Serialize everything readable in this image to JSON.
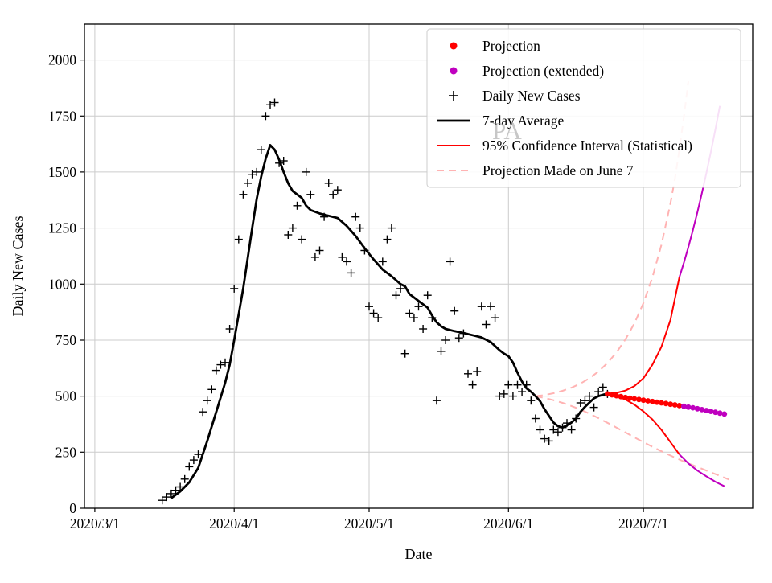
{
  "watermark": {
    "text": "PA",
    "color": "#999999"
  },
  "chart_data": {
    "type": "line",
    "title": "",
    "xlabel": "Date",
    "ylabel": "Daily New Cases",
    "grid": true,
    "legend_position": "upper right",
    "xlim_days": [
      -2.3,
      146.3
    ],
    "ylim": [
      0,
      2160
    ],
    "x_unit": "days since 2020/3/1",
    "x_ticks": [
      {
        "day": 0,
        "label": "2020/3/1"
      },
      {
        "day": 31,
        "label": "2020/4/1"
      },
      {
        "day": 61,
        "label": "2020/5/1"
      },
      {
        "day": 92,
        "label": "2020/6/1"
      },
      {
        "day": 122,
        "label": "2020/7/1"
      }
    ],
    "y_ticks": [
      0,
      250,
      500,
      750,
      1000,
      1250,
      1500,
      1750,
      2000
    ],
    "style": {
      "grid": "#cccccc",
      "frame": "#000000",
      "legend_border": "#cccccc"
    },
    "legend": {
      "entries": [
        {
          "label": "Projection",
          "marker": "dot",
          "color": "#ff0000"
        },
        {
          "label": "Projection (extended)",
          "marker": "dot",
          "color": "#bf00bf"
        },
        {
          "label": "Daily New Cases",
          "marker": "plus",
          "color": "#000000"
        },
        {
          "label": "7-day Average",
          "marker": "line",
          "color": "#000000",
          "lw": 2.8
        },
        {
          "label": "95% Confidence Interval (Statistical)",
          "marker": "line",
          "color": "#ff0000",
          "lw": 2
        },
        {
          "label": "Projection Made on June 7",
          "marker": "line",
          "color": "#ffb3b3",
          "lw": 2,
          "dash": "9 6"
        }
      ]
    },
    "series": [
      {
        "id": "june7_projection_upper",
        "legend": "Projection Made on June 7",
        "type": "line",
        "color": "#ffb3b3",
        "lw": 2,
        "dash": "9 6",
        "points": [
          [
            98,
            500
          ],
          [
            100,
            505
          ],
          [
            102,
            513
          ],
          [
            104,
            524
          ],
          [
            106,
            538
          ],
          [
            108,
            556
          ],
          [
            110,
            580
          ],
          [
            112,
            610
          ],
          [
            114,
            648
          ],
          [
            116,
            695
          ],
          [
            118,
            753
          ],
          [
            120,
            825
          ],
          [
            122,
            915
          ],
          [
            124,
            1030
          ],
          [
            126,
            1175
          ],
          [
            128,
            1360
          ],
          [
            129,
            1470
          ],
          [
            130,
            1600
          ],
          [
            131,
            1745
          ],
          [
            132,
            1905
          ]
        ]
      },
      {
        "id": "june7_projection_lower",
        "legend": "Projection Made on June 7",
        "type": "line",
        "color": "#ffb3b3",
        "lw": 2,
        "dash": "9 6",
        "points": [
          [
            98,
            500
          ],
          [
            100,
            492
          ],
          [
            102,
            482
          ],
          [
            104,
            470
          ],
          [
            106,
            456
          ],
          [
            108,
            440
          ],
          [
            110,
            422
          ],
          [
            112,
            402
          ],
          [
            114,
            381
          ],
          [
            116,
            360
          ],
          [
            118,
            338
          ],
          [
            120,
            316
          ],
          [
            122,
            295
          ],
          [
            124,
            274
          ],
          [
            126,
            254
          ],
          [
            128,
            235
          ],
          [
            130,
            217
          ],
          [
            132,
            200
          ],
          [
            134,
            184
          ],
          [
            136,
            168
          ],
          [
            138,
            152
          ],
          [
            140,
            136
          ],
          [
            141,
            128
          ]
        ]
      },
      {
        "id": "ci_upper",
        "legend": "95% Confidence Interval (Statistical)",
        "type": "line",
        "color": "#ff0000",
        "lw": 2,
        "points": [
          [
            114,
            510
          ],
          [
            116,
            515
          ],
          [
            118,
            525
          ],
          [
            120,
            545
          ],
          [
            122,
            580
          ],
          [
            124,
            640
          ],
          [
            126,
            720
          ],
          [
            128,
            840
          ],
          [
            130,
            1030
          ]
        ]
      },
      {
        "id": "ci_lower",
        "legend": "95% Confidence Interval (Statistical)",
        "type": "line",
        "color": "#ff0000",
        "lw": 2,
        "points": [
          [
            114,
            510
          ],
          [
            116,
            500
          ],
          [
            118,
            485
          ],
          [
            120,
            462
          ],
          [
            122,
            432
          ],
          [
            124,
            396
          ],
          [
            126,
            350
          ],
          [
            128,
            295
          ],
          [
            130,
            240
          ]
        ]
      },
      {
        "id": "ci_upper_extended",
        "legend": "Projection (extended)",
        "type": "line",
        "color": "#bf00bf",
        "lw": 2,
        "points": [
          [
            130,
            1030
          ],
          [
            131,
            1095
          ],
          [
            132,
            1165
          ],
          [
            133,
            1240
          ],
          [
            134,
            1320
          ],
          [
            135,
            1405
          ],
          [
            136,
            1495
          ],
          [
            137,
            1590
          ],
          [
            138,
            1690
          ],
          [
            139,
            1795
          ]
        ]
      },
      {
        "id": "ci_lower_extended",
        "legend": "Projection (extended)",
        "type": "line",
        "color": "#bf00bf",
        "lw": 2,
        "points": [
          [
            130,
            240
          ],
          [
            132,
            200
          ],
          [
            134,
            168
          ],
          [
            136,
            142
          ],
          [
            138,
            118
          ],
          [
            140,
            98
          ]
        ]
      },
      {
        "id": "seven_day_average",
        "legend": "7-day Average",
        "type": "line",
        "color": "#000000",
        "lw": 2.8,
        "points": [
          [
            17,
            45
          ],
          [
            19,
            75
          ],
          [
            21,
            115
          ],
          [
            23,
            180
          ],
          [
            25,
            300
          ],
          [
            27,
            430
          ],
          [
            29,
            560
          ],
          [
            30,
            640
          ],
          [
            31,
            750
          ],
          [
            33,
            980
          ],
          [
            35,
            1250
          ],
          [
            36,
            1380
          ],
          [
            37,
            1480
          ],
          [
            38,
            1560
          ],
          [
            39,
            1620
          ],
          [
            40,
            1600
          ],
          [
            41,
            1555
          ],
          [
            42,
            1500
          ],
          [
            43,
            1450
          ],
          [
            44,
            1415
          ],
          [
            45,
            1400
          ],
          [
            46,
            1385
          ],
          [
            47,
            1350
          ],
          [
            48,
            1330
          ],
          [
            50,
            1315
          ],
          [
            52,
            1305
          ],
          [
            54,
            1295
          ],
          [
            56,
            1260
          ],
          [
            58,
            1215
          ],
          [
            60,
            1160
          ],
          [
            62,
            1110
          ],
          [
            64,
            1065
          ],
          [
            66,
            1035
          ],
          [
            68,
            1000
          ],
          [
            69,
            990
          ],
          [
            70,
            955
          ],
          [
            72,
            925
          ],
          [
            74,
            895
          ],
          [
            75,
            860
          ],
          [
            76,
            830
          ],
          [
            77,
            812
          ],
          [
            78,
            800
          ],
          [
            80,
            790
          ],
          [
            82,
            782
          ],
          [
            84,
            772
          ],
          [
            86,
            762
          ],
          [
            88,
            742
          ],
          [
            90,
            705
          ],
          [
            91,
            690
          ],
          [
            92,
            678
          ],
          [
            93,
            650
          ],
          [
            94,
            605
          ],
          [
            95,
            565
          ],
          [
            96,
            535
          ],
          [
            97,
            520
          ],
          [
            98,
            500
          ],
          [
            99,
            478
          ],
          [
            100,
            442
          ],
          [
            101,
            412
          ],
          [
            102,
            382
          ],
          [
            103,
            366
          ],
          [
            104,
            360
          ],
          [
            105,
            370
          ],
          [
            106,
            382
          ],
          [
            107,
            400
          ],
          [
            108,
            430
          ],
          [
            109,
            452
          ],
          [
            110,
            472
          ],
          [
            111,
            490
          ],
          [
            112,
            500
          ],
          [
            113,
            506
          ],
          [
            114,
            510
          ]
        ]
      },
      {
        "id": "daily_new_cases",
        "legend": "Daily New Cases",
        "type": "scatter",
        "marker": "plus",
        "color": "#000000",
        "points": [
          [
            15,
            35
          ],
          [
            16,
            50
          ],
          [
            17,
            65
          ],
          [
            18,
            80
          ],
          [
            19,
            95
          ],
          [
            20,
            130
          ],
          [
            21,
            185
          ],
          [
            22,
            215
          ],
          [
            23,
            240
          ],
          [
            24,
            430
          ],
          [
            25,
            480
          ],
          [
            26,
            530
          ],
          [
            27,
            615
          ],
          [
            28,
            640
          ],
          [
            29,
            650
          ],
          [
            30,
            800
          ],
          [
            31,
            980
          ],
          [
            32,
            1200
          ],
          [
            33,
            1400
          ],
          [
            34,
            1450
          ],
          [
            35,
            1490
          ],
          [
            36,
            1500
          ],
          [
            37,
            1600
          ],
          [
            38,
            1750
          ],
          [
            39,
            1800
          ],
          [
            40,
            1810
          ],
          [
            41,
            1540
          ],
          [
            42,
            1550
          ],
          [
            43,
            1220
          ],
          [
            44,
            1250
          ],
          [
            45,
            1350
          ],
          [
            46,
            1200
          ],
          [
            47,
            1500
          ],
          [
            48,
            1400
          ],
          [
            49,
            1120
          ],
          [
            50,
            1150
          ],
          [
            51,
            1300
          ],
          [
            52,
            1450
          ],
          [
            53,
            1400
          ],
          [
            54,
            1420
          ],
          [
            55,
            1120
          ],
          [
            56,
            1100
          ],
          [
            57,
            1050
          ],
          [
            58,
            1300
          ],
          [
            59,
            1250
          ],
          [
            60,
            1150
          ],
          [
            61,
            900
          ],
          [
            62,
            870
          ],
          [
            63,
            850
          ],
          [
            64,
            1100
          ],
          [
            65,
            1200
          ],
          [
            66,
            1250
          ],
          [
            67,
            950
          ],
          [
            68,
            980
          ],
          [
            69,
            690
          ],
          [
            70,
            870
          ],
          [
            71,
            850
          ],
          [
            72,
            900
          ],
          [
            73,
            800
          ],
          [
            74,
            950
          ],
          [
            75,
            850
          ],
          [
            76,
            480
          ],
          [
            77,
            700
          ],
          [
            78,
            750
          ],
          [
            79,
            1100
          ],
          [
            80,
            880
          ],
          [
            81,
            760
          ],
          [
            82,
            780
          ],
          [
            83,
            600
          ],
          [
            84,
            550
          ],
          [
            85,
            610
          ],
          [
            86,
            900
          ],
          [
            87,
            820
          ],
          [
            88,
            900
          ],
          [
            89,
            850
          ],
          [
            90,
            500
          ],
          [
            91,
            510
          ],
          [
            92,
            550
          ],
          [
            93,
            500
          ],
          [
            94,
            550
          ],
          [
            95,
            520
          ],
          [
            96,
            550
          ],
          [
            97,
            480
          ],
          [
            98,
            400
          ],
          [
            99,
            350
          ],
          [
            100,
            310
          ],
          [
            101,
            300
          ],
          [
            102,
            350
          ],
          [
            103,
            340
          ],
          [
            104,
            360
          ],
          [
            105,
            380
          ],
          [
            106,
            350
          ],
          [
            107,
            400
          ],
          [
            108,
            470
          ],
          [
            109,
            480
          ],
          [
            110,
            500
          ],
          [
            111,
            450
          ],
          [
            112,
            520
          ],
          [
            113,
            540
          ],
          [
            114,
            510
          ]
        ]
      },
      {
        "id": "projection",
        "legend": "Projection",
        "type": "scatter",
        "marker": "dot",
        "color": "#ff0000",
        "points": [
          [
            114,
            510
          ],
          [
            115,
            506
          ],
          [
            116,
            502
          ],
          [
            117,
            498
          ],
          [
            118,
            494
          ],
          [
            119,
            491
          ],
          [
            120,
            488
          ],
          [
            121,
            485
          ],
          [
            122,
            482
          ],
          [
            123,
            479
          ],
          [
            124,
            476
          ],
          [
            125,
            473
          ],
          [
            126,
            470
          ],
          [
            127,
            467
          ],
          [
            128,
            464
          ],
          [
            129,
            461
          ],
          [
            130,
            458
          ]
        ]
      },
      {
        "id": "projection_extended",
        "legend": "Projection (extended)",
        "type": "scatter",
        "marker": "dot",
        "color": "#bf00bf",
        "points": [
          [
            131,
            455
          ],
          [
            132,
            451
          ],
          [
            133,
            448
          ],
          [
            134,
            444
          ],
          [
            135,
            440
          ],
          [
            136,
            436
          ],
          [
            137,
            432
          ],
          [
            138,
            428
          ],
          [
            139,
            424
          ],
          [
            140,
            420
          ]
        ]
      }
    ]
  }
}
